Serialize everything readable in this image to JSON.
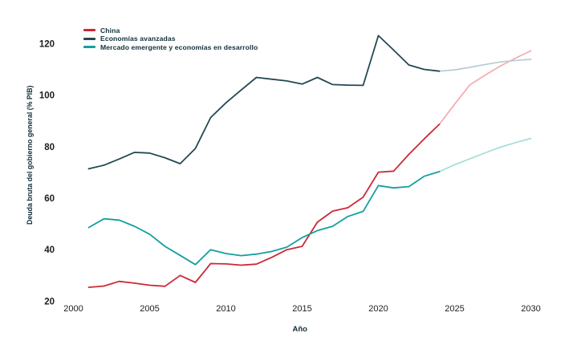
{
  "chart_data": {
    "type": "line",
    "title": "",
    "xlabel": "Año",
    "ylabel": "Deuda bruta del gobierno general (% PIB)",
    "legend_position": "top-left",
    "grid": false,
    "axis_spines": false,
    "text_color": "#1d1d1b",
    "label_color": "#12303a",
    "x_ticks": [
      2000,
      2005,
      2010,
      2015,
      2020,
      2025,
      2030
    ],
    "y_ticks": [
      20,
      40,
      60,
      80,
      100,
      120
    ],
    "xlim": [
      1999.6,
      2031
    ],
    "ylim": [
      18,
      125
    ],
    "x": [
      2001,
      2002,
      2003,
      2004,
      2005,
      2006,
      2007,
      2008,
      2009,
      2010,
      2011,
      2012,
      2013,
      2014,
      2015,
      2016,
      2017,
      2018,
      2019,
      2020,
      2021,
      2022,
      2023,
      2024,
      2025,
      2026,
      2027,
      2028,
      2029,
      2030
    ],
    "projection_start_year": 2024,
    "series": [
      {
        "id": "china",
        "name": "China",
        "color": "#cc2936",
        "projection_color": "#f3aab1",
        "values": [
          25.4,
          25.9,
          27.7,
          27.0,
          26.2,
          25.8,
          30.0,
          27.3,
          34.6,
          34.5,
          34.0,
          34.4,
          37.0,
          40.0,
          41.3,
          50.7,
          55.0,
          56.3,
          60.4,
          70.1,
          70.5,
          77.0,
          83.0,
          88.7,
          96.5,
          104.0,
          107.8,
          111.3,
          114.4,
          117.2
        ]
      },
      {
        "id": "economias-avanzadas",
        "name": "Economías avanzadas",
        "color": "#244853",
        "projection_color": "#b6cdd1",
        "values": [
          71.4,
          72.8,
          75.2,
          77.8,
          77.5,
          75.7,
          73.4,
          79.3,
          91.3,
          97.0,
          102.0,
          106.9,
          106.2,
          105.5,
          104.3,
          106.9,
          104.1,
          103.9,
          103.8,
          123.1,
          117.5,
          111.7,
          110.0,
          109.3,
          109.8,
          110.8,
          111.9,
          112.9,
          113.5,
          113.9
        ]
      },
      {
        "id": "mercado-emergente",
        "name": "Mercado emergente y economías en desarrollo",
        "color": "#13a09e",
        "projection_color": "#a6ddd6",
        "values": [
          48.6,
          52.0,
          51.5,
          49.1,
          46.0,
          41.3,
          37.8,
          34.2,
          40.0,
          38.5,
          37.7,
          38.3,
          39.3,
          41.0,
          44.7,
          47.4,
          49.1,
          52.9,
          54.9,
          64.9,
          64.0,
          64.5,
          68.5,
          70.3,
          73.0,
          75.3,
          77.6,
          79.8,
          81.6,
          83.2
        ]
      }
    ]
  }
}
